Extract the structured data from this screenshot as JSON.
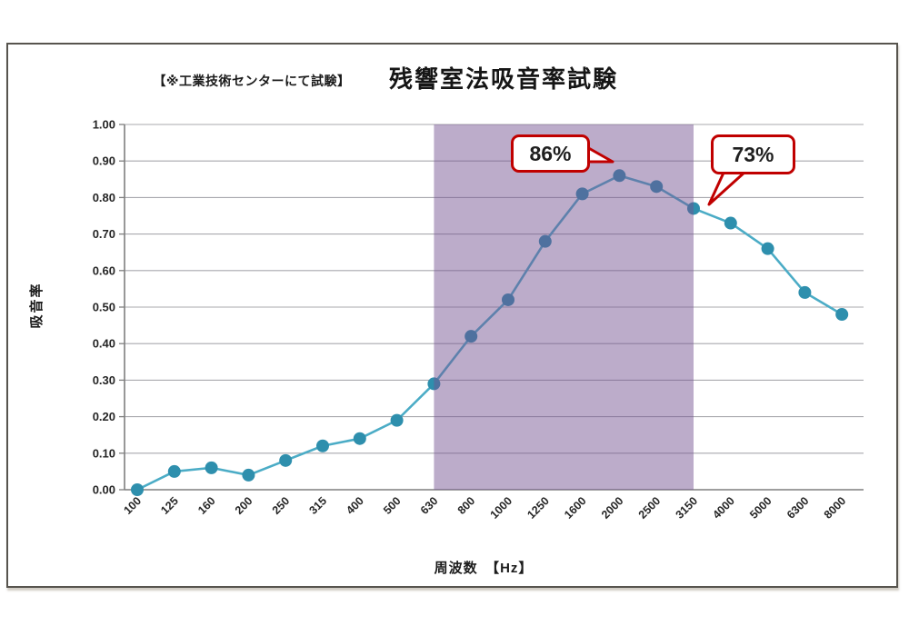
{
  "frame": {
    "note": "【※工業技術センターにて試験】",
    "title": "残響室法吸音率試験"
  },
  "chart_data": {
    "type": "line",
    "title": "残響室法吸音率試験",
    "subtitle_note": "【※工業技術センターにて試験】",
    "categories": [
      "100",
      "125",
      "160",
      "200",
      "250",
      "315",
      "400",
      "500",
      "630",
      "800",
      "1000",
      "1250",
      "1600",
      "2000",
      "2500",
      "3150",
      "4000",
      "5000",
      "6300",
      "8000"
    ],
    "values": [
      0.0,
      0.05,
      0.06,
      0.04,
      0.08,
      0.12,
      0.14,
      0.19,
      0.29,
      0.42,
      0.52,
      0.68,
      0.81,
      0.86,
      0.83,
      0.77,
      0.73,
      0.66,
      0.54,
      0.48
    ],
    "xlabel": "周波数　【Hz】",
    "ylabel": "吸音率",
    "ylim": [
      0.0,
      1.0
    ],
    "ytick_labels": [
      "0.00",
      "0.10",
      "0.20",
      "0.30",
      "0.40",
      "0.50",
      "0.60",
      "0.70",
      "0.80",
      "0.90",
      "1.00"
    ],
    "grid": true,
    "legend": "none",
    "highlight_band": {
      "from_category": "630",
      "to_category": "3150",
      "fill": "#735191",
      "opacity": 0.48
    },
    "annotations": [
      {
        "label": "86%",
        "category": "2000",
        "value": 0.86
      },
      {
        "label": "73%",
        "category": "4000",
        "value": 0.73
      }
    ],
    "colors": {
      "line": "#4BACC6",
      "marker": "#2E8FAD",
      "gridline": "#A9A9AE",
      "axis": "#7F7F7F",
      "tick_text": "#262626",
      "annotation_border": "#C00000",
      "annotation_text": "#1F1F1F"
    }
  }
}
